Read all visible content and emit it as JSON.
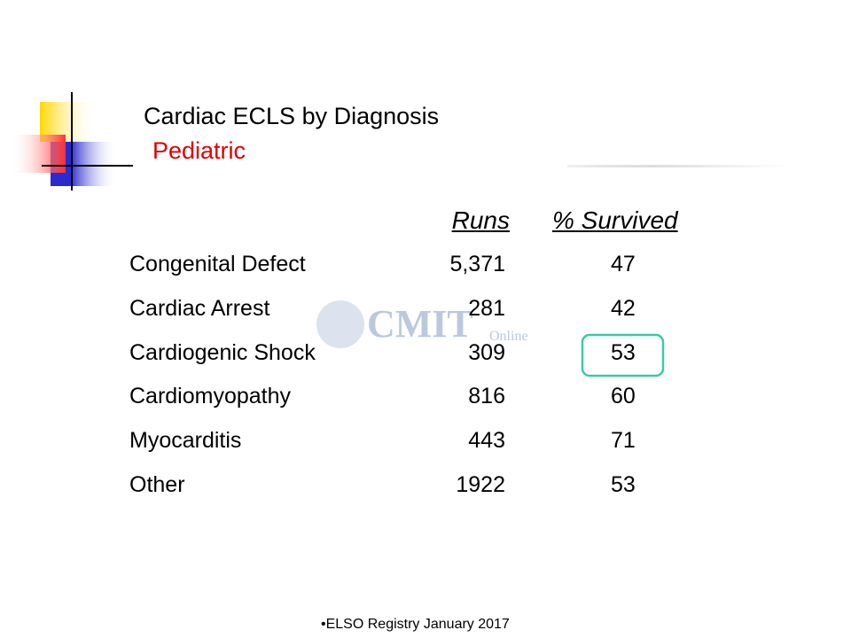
{
  "header": {
    "title": "Cardiac ECLS by Diagnosis",
    "subtitle": "Pediatric"
  },
  "table": {
    "columns": [
      "Runs",
      "% Survived"
    ],
    "rows": [
      [
        "Congenital Defect",
        "5,371",
        "47"
      ],
      [
        "Cardiac Arrest",
        "281",
        "42"
      ],
      [
        "Cardiogenic Shock",
        "309",
        "53"
      ],
      [
        "Cardiomyopathy",
        "816",
        "60"
      ],
      [
        "Myocarditis",
        "443",
        "71"
      ],
      [
        "Other",
        "1922",
        "53"
      ]
    ]
  },
  "watermark": {
    "name": "CMIT",
    "tag": "Online"
  },
  "footer": "ELSO Registry January 2017"
}
